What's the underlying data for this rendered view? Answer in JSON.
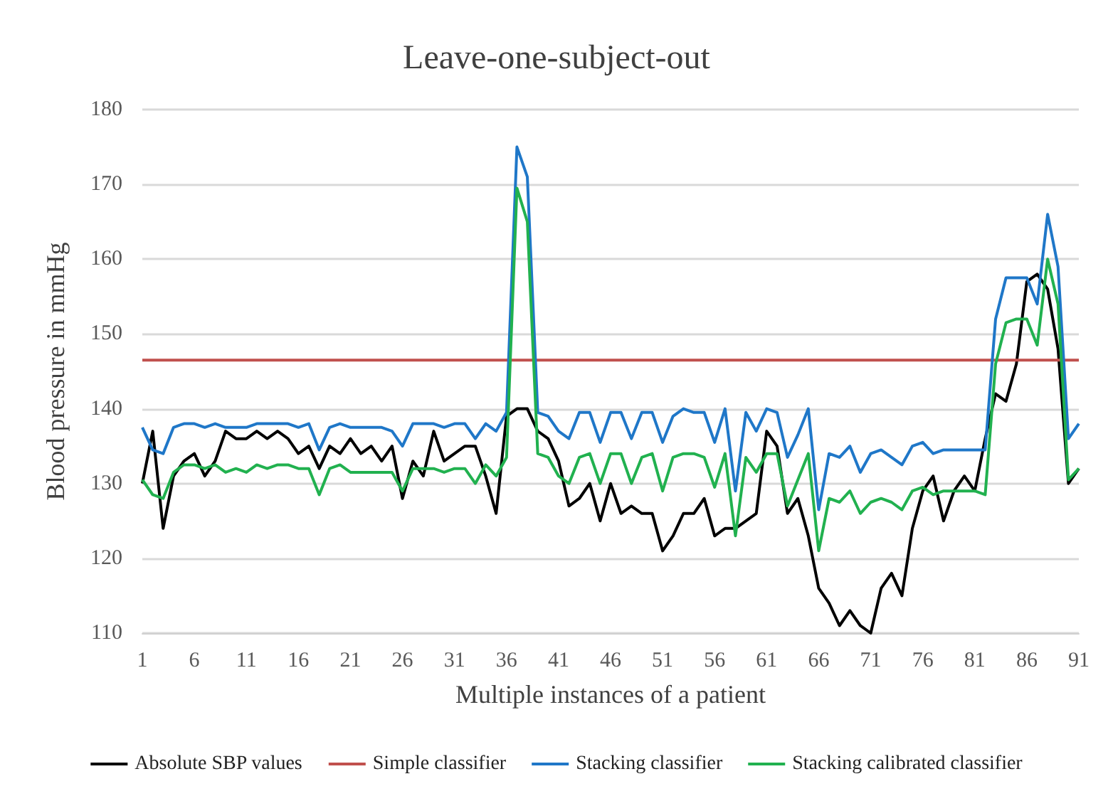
{
  "chart_data": {
    "type": "line",
    "title": "Leave-one-subject-out",
    "xlabel": "Multiple instances of a patient",
    "ylabel": "Blood pressure in mmHg",
    "x": [
      1,
      2,
      3,
      4,
      5,
      6,
      7,
      8,
      9,
      10,
      11,
      12,
      13,
      14,
      15,
      16,
      17,
      18,
      19,
      20,
      21,
      22,
      23,
      24,
      25,
      26,
      27,
      28,
      29,
      30,
      31,
      32,
      33,
      34,
      35,
      36,
      37,
      38,
      39,
      40,
      41,
      42,
      43,
      44,
      45,
      46,
      47,
      48,
      49,
      50,
      51,
      52,
      53,
      54,
      55,
      56,
      57,
      58,
      59,
      60,
      61,
      62,
      63,
      64,
      65,
      66,
      67,
      68,
      69,
      70,
      71,
      72,
      73,
      74,
      75,
      76,
      77,
      78,
      79,
      80,
      81,
      82,
      83,
      84,
      85,
      86,
      87,
      88,
      89,
      90,
      91
    ],
    "series": [
      {
        "name": "Absolute SBP values",
        "color": "#000000",
        "values": [
          130,
          137,
          124,
          131,
          133,
          134,
          131,
          133,
          137,
          136,
          136,
          137,
          136,
          137,
          136,
          134,
          135,
          132,
          135,
          134,
          136,
          134,
          135,
          133,
          135,
          128,
          133,
          131,
          137,
          133,
          134,
          135,
          135,
          131,
          126,
          139,
          140,
          140,
          137,
          136,
          133,
          127,
          128,
          130,
          125,
          130,
          126,
          127,
          126,
          126,
          121,
          123,
          126,
          126,
          128,
          123,
          124,
          124,
          125,
          126,
          137,
          135,
          126,
          128,
          123,
          116,
          114,
          111,
          113,
          111,
          110,
          116,
          118,
          115,
          124,
          129,
          131,
          125,
          129,
          131,
          129,
          136,
          142,
          141,
          146,
          157,
          158,
          156,
          148,
          130,
          132
        ]
      },
      {
        "name": "Simple classifier",
        "color": "#c0504d",
        "values": [
          146.5,
          146.5,
          146.5,
          146.5,
          146.5,
          146.5,
          146.5,
          146.5,
          146.5,
          146.5,
          146.5,
          146.5,
          146.5,
          146.5,
          146.5,
          146.5,
          146.5,
          146.5,
          146.5,
          146.5,
          146.5,
          146.5,
          146.5,
          146.5,
          146.5,
          146.5,
          146.5,
          146.5,
          146.5,
          146.5,
          146.5,
          146.5,
          146.5,
          146.5,
          146.5,
          146.5,
          146.5,
          146.5,
          146.5,
          146.5,
          146.5,
          146.5,
          146.5,
          146.5,
          146.5,
          146.5,
          146.5,
          146.5,
          146.5,
          146.5,
          146.5,
          146.5,
          146.5,
          146.5,
          146.5,
          146.5,
          146.5,
          146.5,
          146.5,
          146.5,
          146.5,
          146.5,
          146.5,
          146.5,
          146.5,
          146.5,
          146.5,
          146.5,
          146.5,
          146.5,
          146.5,
          146.5,
          146.5,
          146.5,
          146.5,
          146.5,
          146.5,
          146.5,
          146.5,
          146.5,
          146.5,
          146.5,
          146.5,
          146.5,
          146.5,
          146.5,
          146.5,
          146.5,
          146.5,
          146.5,
          146.5
        ]
      },
      {
        "name": "Stacking classifier",
        "color": "#1f77c8",
        "values": [
          137.5,
          134.5,
          134,
          137.5,
          138,
          138,
          137.5,
          138,
          137.5,
          137.5,
          137.5,
          138,
          138,
          138,
          138,
          137.5,
          138,
          134.5,
          137.5,
          138,
          137.5,
          137.5,
          137.5,
          137.5,
          137,
          135,
          138,
          138,
          138,
          137.5,
          138,
          138,
          136,
          138,
          137,
          139.5,
          175,
          171,
          139.5,
          139,
          137,
          136,
          139.5,
          139.5,
          135.5,
          139.5,
          139.5,
          136,
          139.5,
          139.5,
          135.5,
          139,
          140,
          139.5,
          139.5,
          135.5,
          140,
          129,
          139.5,
          137,
          140,
          139.5,
          133.5,
          136.5,
          140,
          126.5,
          134,
          133.5,
          135,
          131.5,
          134,
          134.5,
          133.5,
          132.5,
          135,
          135.5,
          134,
          134.5,
          134.5,
          134.5,
          134.5,
          134.5,
          152,
          157.5,
          157.5,
          157.5,
          154,
          166,
          159,
          136,
          138
        ]
      },
      {
        "name": "Stacking calibrated classifier",
        "color": "#21b14f",
        "values": [
          130.5,
          128.5,
          128,
          131.5,
          132.5,
          132.5,
          132,
          132.5,
          131.5,
          132,
          131.5,
          132.5,
          132,
          132.5,
          132.5,
          132,
          132,
          128.5,
          132,
          132.5,
          131.5,
          131.5,
          131.5,
          131.5,
          131.5,
          129,
          132,
          132,
          132,
          131.5,
          132,
          132,
          130,
          132.5,
          131,
          133.5,
          169.5,
          165,
          134,
          133.5,
          131,
          130,
          133.5,
          134,
          130,
          134,
          134,
          130,
          133.5,
          134,
          129,
          133.5,
          134,
          134,
          133.5,
          129.5,
          134,
          123,
          133.5,
          131.5,
          134,
          134,
          127,
          130.5,
          134,
          121,
          128,
          127.5,
          129,
          126,
          127.5,
          128,
          127.5,
          126.5,
          129,
          129.5,
          128.5,
          129,
          129,
          129,
          129,
          128.5,
          146,
          151.5,
          152,
          152,
          148.5,
          160,
          154,
          130.5,
          132
        ]
      }
    ],
    "xlim": [
      1,
      91
    ],
    "xticks": [
      1,
      6,
      11,
      16,
      21,
      26,
      31,
      36,
      41,
      46,
      51,
      56,
      61,
      66,
      71,
      76,
      81,
      86,
      91
    ],
    "ylim": [
      110,
      180
    ],
    "yticks": [
      110,
      120,
      130,
      140,
      150,
      160,
      170,
      180
    ],
    "grid": "y",
    "legend": "bottom",
    "marker": "none",
    "line_style": "solid"
  }
}
